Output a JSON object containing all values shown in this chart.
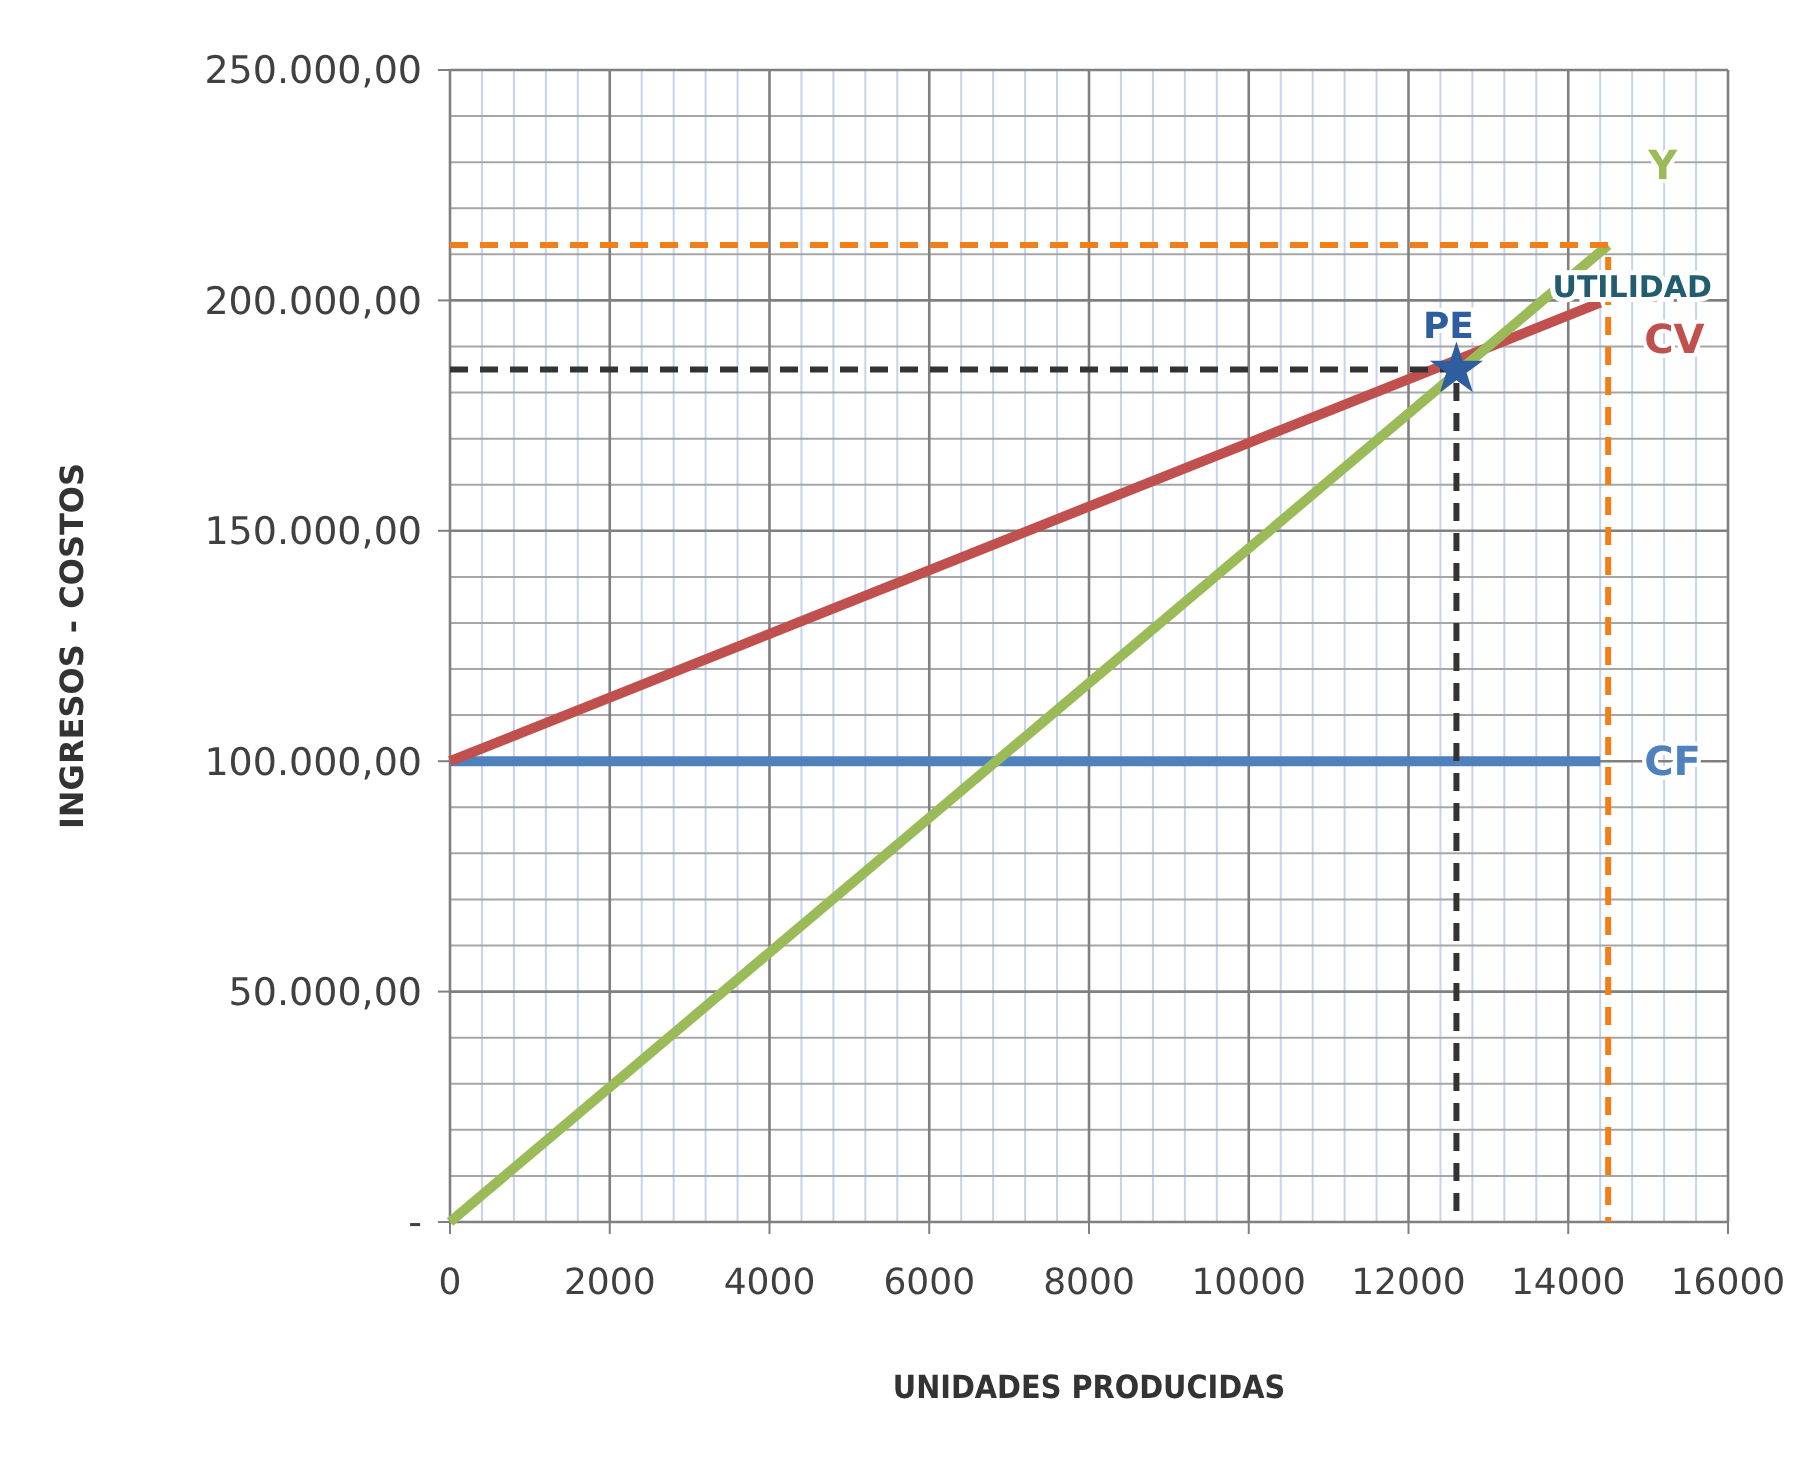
{
  "chart_data": {
    "type": "line",
    "xlabel": "UNIDADES PRODUCIDAS",
    "ylabel": "INGRESOS - COSTOS",
    "xlim": [
      0,
      16000
    ],
    "xticks": [
      0,
      {
        "value": 400,
        "label": null
      },
      {
        "value": 800,
        "label": null
      },
      {
        "value": 1200,
        "label": null
      },
      {
        "value": 1600,
        "label": null
      },
      2000,
      {
        "value": 2400,
        "label": null
      },
      {
        "value": 2800,
        "label": null
      },
      {
        "value": 3200,
        "label": null
      },
      {
        "value": 3600,
        "label": null
      },
      4000,
      {
        "value": 4400,
        "label": null
      },
      {
        "value": 4800,
        "label": null
      },
      {
        "value": 5200,
        "label": null
      },
      {
        "value": 5600,
        "label": null
      },
      6000,
      {
        "value": 6400,
        "label": null
      },
      {
        "value": 6800,
        "label": null
      },
      {
        "value": 7200,
        "label": null
      },
      {
        "value": 7600,
        "label": null
      },
      8000,
      {
        "value": 8400,
        "label": null
      },
      {
        "value": 8800,
        "label": null
      },
      {
        "value": 9200,
        "label": null
      },
      {
        "value": 9600,
        "label": null
      },
      10000,
      {
        "value": 10400,
        "label": null
      },
      {
        "value": 10800,
        "label": null
      },
      {
        "value": 11200,
        "label": null
      },
      {
        "value": 11600,
        "label": null
      },
      12000,
      {
        "value": 12400,
        "label": null
      },
      {
        "value": 12800,
        "label": null
      },
      {
        "value": 13200,
        "label": null
      },
      {
        "value": 13600,
        "label": null
      },
      14000,
      {
        "value": 14400,
        "label": null
      },
      {
        "value": 14800,
        "label": null
      },
      {
        "value": 15200,
        "label": null
      },
      {
        "value": 15600,
        "label": null
      },
      16000
    ],
    "ylim": [
      0,
      250000
    ],
    "yticks": [
      {
        "value": 0,
        "label": "-"
      },
      {
        "value": 50000,
        "label": "50.000,00"
      },
      {
        "value": 100000,
        "label": "100.000,00"
      },
      {
        "value": 150000,
        "label": "150.000,00"
      },
      {
        "value": 200000,
        "label": "200.000,00"
      },
      {
        "value": 250000,
        "label": "250.000,00"
      }
    ],
    "grid": true,
    "marker": "none",
    "line_style": "solid",
    "series": [
      {
        "name": "CF",
        "color": "#4f81bd",
        "x": [
          0,
          14400
        ],
        "values": [
          100000,
          100000
        ]
      },
      {
        "name": "CV",
        "color": "#c0504d",
        "x": [
          0,
          14400
        ],
        "values": [
          100000,
          199500
        ]
      },
      {
        "name": "Y",
        "color": "#9bbb59",
        "x": [
          0,
          14500
        ],
        "values": [
          0,
          212000
        ]
      },
      {
        "color": "#333333",
        "line_style": "dashed",
        "x": [
          0,
          12600,
          12600
        ],
        "values": [
          185000,
          185000,
          0
        ]
      },
      {
        "color": "#f07f1a",
        "line_style": "dashed",
        "x": [
          0,
          14500,
          14500
        ],
        "values": [
          212000,
          212000,
          0
        ]
      },
      {
        "name": "PE",
        "type": "scatter",
        "marker": "star",
        "color": "#2e5e9e",
        "x": [
          12600
        ],
        "values": [
          185000
        ]
      }
    ],
    "annotations": [
      {
        "text": "UTILIDAD",
        "x": 14500,
        "y": 205000
      }
    ]
  }
}
